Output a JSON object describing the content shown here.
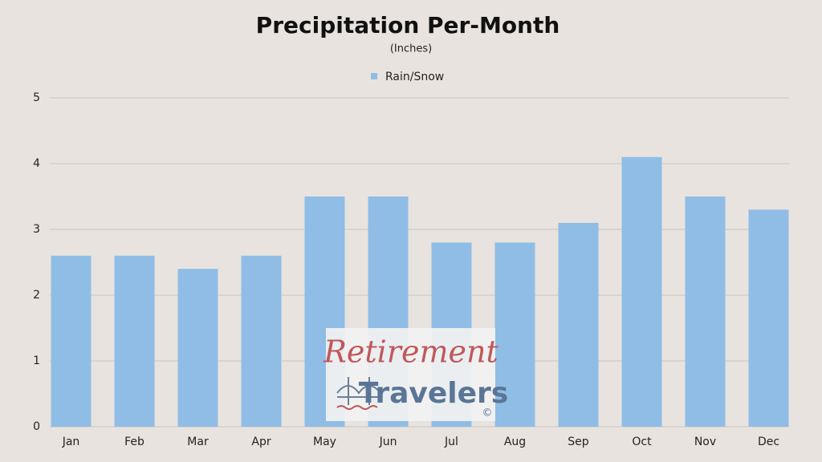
{
  "chart_data": {
    "type": "bar",
    "title": "Precipitation Per-Month",
    "subtitle": "(Inches)",
    "categories": [
      "Jan",
      "Feb",
      "Mar",
      "Apr",
      "May",
      "Jun",
      "Jul",
      "Aug",
      "Sep",
      "Oct",
      "Nov",
      "Dec"
    ],
    "series": [
      {
        "name": "Rain/Snow",
        "color": "#8fbde6",
        "values": [
          2.6,
          2.6,
          2.4,
          2.6,
          3.5,
          3.5,
          2.8,
          2.8,
          3.1,
          4.1,
          3.5,
          3.3
        ]
      }
    ],
    "ylim": [
      0,
      5
    ],
    "yticks": [
      0,
      1,
      2,
      3,
      4,
      5
    ],
    "grid": true,
    "legend": "top"
  },
  "watermark": {
    "line1": "Retirement",
    "line2": "Travelers",
    "mark": "©"
  }
}
